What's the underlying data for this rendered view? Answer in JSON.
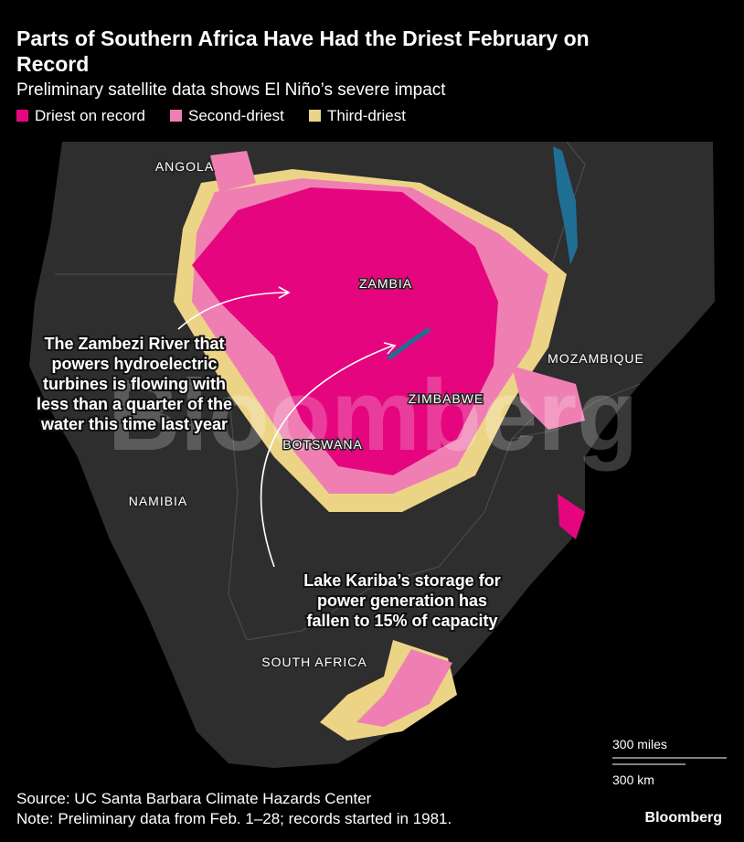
{
  "header": {
    "title_lines": [
      "Parts of Southern Africa Have Had the Driest February on",
      "Record"
    ],
    "subtitle": "Preliminary satellite data shows El Niño’s severe impact"
  },
  "legend": [
    {
      "label": "Driest on record",
      "color": "#e5067f"
    },
    {
      "label": "Second-driest",
      "color": "#ef7fb3"
    },
    {
      "label": "Third-driest",
      "color": "#ecd487"
    }
  ],
  "places": [
    "ANGOLA",
    "ZAMBIA",
    "MOZAMBIQUE",
    "ZIMBABWE",
    "BOTSWANA",
    "NAMIBIA",
    "SOUTH AFRICA"
  ],
  "annotations": [
    {
      "lines": [
        "The Zambezi River that",
        "powers hydroelectric",
        "turbines is flowing with",
        "less than a quarter of the",
        "water this time last year"
      ]
    },
    {
      "lines": [
        "Lake Kariba’s storage for",
        "power generation has",
        "fallen to 15% of capacity"
      ]
    }
  ],
  "scale": {
    "miles": "300 miles",
    "km": "300 km"
  },
  "watermark": "Bloomberg",
  "footer": {
    "source": "Source: UC Santa Barbara Climate Hazards Center",
    "note": "Note: Preliminary data from Feb. 1–28; records started in 1981.",
    "logo": "Bloomberg"
  }
}
